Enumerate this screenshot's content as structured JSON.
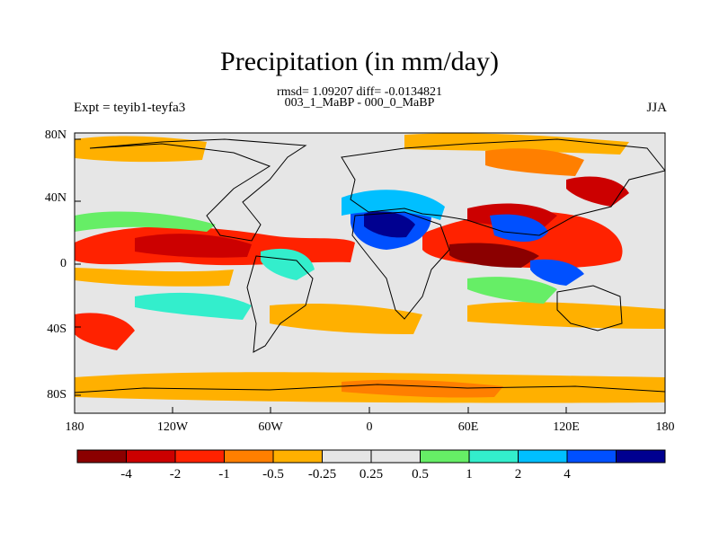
{
  "title": "Precipitation (in mm/day)",
  "stats": "rmsd= 1.09207 diff= -0.0134821",
  "subtitle": "003_1_MaBP - 000_0_MaBP",
  "experiment": "Expt = teyib1-teyfa3",
  "season": "JJA",
  "map": {
    "lat_ticks": [
      "80N",
      "40N",
      "0",
      "40S",
      "80S"
    ],
    "lon_ticks": [
      "180",
      "120W",
      "60W",
      "0",
      "60E",
      "120E",
      "180"
    ]
  },
  "colorbar": {
    "colors": [
      "#8b0000",
      "#cc0000",
      "#ff2200",
      "#ff7f00",
      "#ffb000",
      "#e6e6e6",
      "#e6e6e6",
      "#66ee66",
      "#33eecc",
      "#00bfff",
      "#0050ff",
      "#000090"
    ],
    "labels": [
      "-4",
      "-2",
      "-1",
      "-0.5",
      "-0.25",
      "0.25",
      "0.5",
      "1",
      "2",
      "4"
    ]
  }
}
